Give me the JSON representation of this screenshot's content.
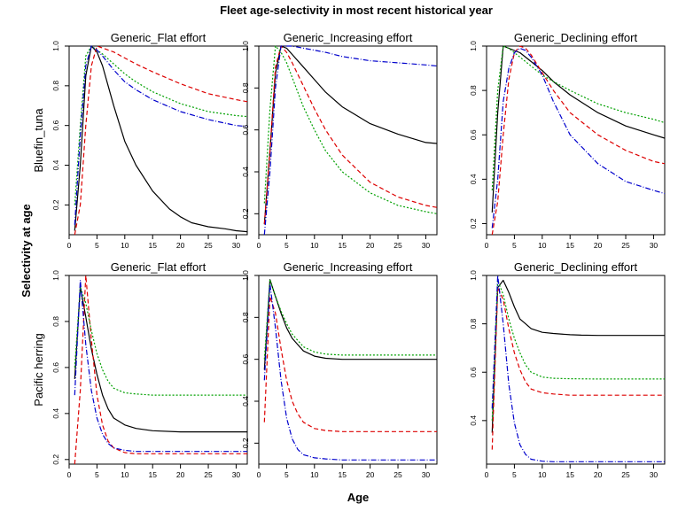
{
  "title": "Fleet age-selectivity in most recent historical year",
  "xlabel": "Age",
  "ylabel": "Selectivity at age",
  "chart_data": [
    {
      "type": "line",
      "row": 0,
      "col": 0,
      "title": "Generic_Flat effort",
      "row_label": "Bluefin_tuna",
      "xlim": [
        0,
        32
      ],
      "ylim": [
        0.05,
        1.0
      ],
      "xticks": [
        0,
        5,
        10,
        15,
        20,
        25,
        30
      ],
      "yticks": [
        0.2,
        0.4,
        0.6,
        0.8,
        1.0
      ],
      "series": [
        {
          "color": "#000000",
          "dash": "",
          "x": [
            1,
            2,
            3,
            4,
            5,
            6,
            7,
            8,
            10,
            12,
            15,
            18,
            20,
            22,
            25,
            28,
            30,
            32
          ],
          "y": [
            0.07,
            0.4,
            0.85,
            1.0,
            0.97,
            0.9,
            0.8,
            0.7,
            0.52,
            0.4,
            0.27,
            0.18,
            0.14,
            0.11,
            0.09,
            0.08,
            0.07,
            0.065
          ]
        },
        {
          "color": "#dd0000",
          "dash": "5,3",
          "x": [
            1,
            2,
            3,
            4,
            5,
            6,
            8,
            10,
            12,
            15,
            20,
            25,
            30,
            32
          ],
          "y": [
            0.05,
            0.2,
            0.6,
            0.9,
            1.0,
            0.99,
            0.97,
            0.94,
            0.91,
            0.87,
            0.81,
            0.76,
            0.73,
            0.72
          ]
        },
        {
          "color": "#00a000",
          "dash": "2,2",
          "x": [
            1,
            2,
            3,
            4,
            5,
            6,
            8,
            10,
            12,
            15,
            20,
            25,
            30,
            32
          ],
          "y": [
            0.2,
            0.6,
            0.95,
            1.0,
            0.98,
            0.96,
            0.91,
            0.86,
            0.82,
            0.77,
            0.71,
            0.67,
            0.65,
            0.645
          ]
        },
        {
          "color": "#0000cc",
          "dash": "6,2,1,2",
          "x": [
            1,
            2,
            3,
            4,
            5,
            6,
            8,
            10,
            12,
            15,
            20,
            25,
            30,
            32
          ],
          "y": [
            0.1,
            0.55,
            0.9,
            1.0,
            0.98,
            0.95,
            0.88,
            0.82,
            0.78,
            0.73,
            0.67,
            0.63,
            0.6,
            0.595
          ]
        }
      ]
    },
    {
      "type": "line",
      "row": 0,
      "col": 1,
      "title": "Generic_Increasing effort",
      "row_label": "",
      "xlim": [
        0,
        32
      ],
      "ylim": [
        0.1,
        1.0
      ],
      "xticks": [
        0,
        5,
        10,
        15,
        20,
        25,
        30
      ],
      "yticks": [
        0.2,
        0.4,
        0.6,
        0.8,
        1.0
      ],
      "series": [
        {
          "color": "#000000",
          "dash": "",
          "x": [
            1,
            2,
            3,
            4,
            5,
            6,
            8,
            10,
            12,
            15,
            20,
            25,
            30,
            32
          ],
          "y": [
            0.15,
            0.5,
            0.87,
            1.0,
            0.99,
            0.96,
            0.9,
            0.84,
            0.78,
            0.71,
            0.63,
            0.58,
            0.54,
            0.535
          ]
        },
        {
          "color": "#dd0000",
          "dash": "5,3",
          "x": [
            1,
            2,
            3,
            4,
            5,
            6,
            8,
            10,
            12,
            15,
            20,
            25,
            30,
            32
          ],
          "y": [
            0.15,
            0.5,
            0.9,
            1.0,
            0.97,
            0.92,
            0.81,
            0.7,
            0.6,
            0.48,
            0.35,
            0.28,
            0.24,
            0.23
          ]
        },
        {
          "color": "#00a000",
          "dash": "2,2",
          "x": [
            1,
            2,
            3,
            4,
            5,
            6,
            8,
            10,
            12,
            15,
            20,
            25,
            30,
            32
          ],
          "y": [
            0.25,
            0.7,
            1.0,
            0.97,
            0.92,
            0.85,
            0.71,
            0.6,
            0.5,
            0.4,
            0.3,
            0.24,
            0.21,
            0.2
          ]
        },
        {
          "color": "#0000cc",
          "dash": "6,2,1,2",
          "x": [
            1,
            2,
            3,
            4,
            5,
            6,
            8,
            10,
            12,
            15,
            20,
            25,
            30,
            32
          ],
          "y": [
            0.1,
            0.4,
            0.8,
            1.0,
            1.0,
            1.0,
            0.99,
            0.98,
            0.97,
            0.95,
            0.93,
            0.92,
            0.91,
            0.905
          ]
        }
      ]
    },
    {
      "type": "line",
      "row": 0,
      "col": 2,
      "title": "Generic_Declining effort",
      "row_label": "",
      "xlim": [
        0,
        32
      ],
      "ylim": [
        0.15,
        1.0
      ],
      "xticks": [
        0,
        5,
        10,
        15,
        20,
        25,
        30
      ],
      "yticks": [
        0.2,
        0.4,
        0.6,
        0.8,
        1.0
      ],
      "series": [
        {
          "color": "#000000",
          "dash": "",
          "x": [
            1,
            2,
            3,
            4,
            5,
            6,
            8,
            10,
            12,
            15,
            20,
            25,
            30,
            32
          ],
          "y": [
            0.25,
            0.7,
            1.0,
            0.99,
            0.98,
            0.97,
            0.93,
            0.89,
            0.84,
            0.78,
            0.7,
            0.64,
            0.6,
            0.585
          ]
        },
        {
          "color": "#dd0000",
          "dash": "5,3",
          "x": [
            1,
            2,
            3,
            4,
            5,
            6,
            7,
            8,
            10,
            12,
            15,
            20,
            25,
            30,
            32
          ],
          "y": [
            0.15,
            0.3,
            0.6,
            0.85,
            0.97,
            1.0,
            0.99,
            0.96,
            0.88,
            0.8,
            0.7,
            0.6,
            0.53,
            0.48,
            0.47
          ]
        },
        {
          "color": "#00a000",
          "dash": "2,2",
          "x": [
            1,
            2,
            3,
            4,
            5,
            6,
            8,
            10,
            12,
            15,
            20,
            25,
            30,
            32
          ],
          "y": [
            0.35,
            0.8,
            1.0,
            0.99,
            0.97,
            0.95,
            0.91,
            0.87,
            0.84,
            0.8,
            0.74,
            0.7,
            0.67,
            0.655
          ]
        },
        {
          "color": "#0000cc",
          "dash": "6,2,1,2",
          "x": [
            1,
            2,
            3,
            4,
            5,
            6,
            7,
            8,
            10,
            12,
            15,
            20,
            25,
            30,
            32
          ],
          "y": [
            0.18,
            0.4,
            0.75,
            0.9,
            0.97,
            0.99,
            0.98,
            0.95,
            0.87,
            0.75,
            0.6,
            0.47,
            0.39,
            0.35,
            0.335
          ]
        }
      ]
    },
    {
      "type": "line",
      "row": 1,
      "col": 0,
      "title": "Generic_Flat effort",
      "row_label": "Pacific herring",
      "xlim": [
        0,
        32
      ],
      "ylim": [
        0.18,
        1.0
      ],
      "xticks": [
        0,
        5,
        10,
        15,
        20,
        25,
        30
      ],
      "yticks": [
        0.2,
        0.4,
        0.6,
        0.8,
        1.0
      ],
      "series": [
        {
          "color": "#000000",
          "dash": "",
          "x": [
            1,
            2,
            3,
            4,
            5,
            6,
            7,
            8,
            10,
            12,
            15,
            20,
            25,
            30,
            32
          ],
          "y": [
            0.55,
            0.95,
            0.82,
            0.68,
            0.57,
            0.48,
            0.42,
            0.38,
            0.35,
            0.335,
            0.325,
            0.32,
            0.32,
            0.32,
            0.32
          ]
        },
        {
          "color": "#dd0000",
          "dash": "5,3",
          "x": [
            1,
            2,
            3,
            4,
            5,
            6,
            7,
            8,
            10,
            12,
            15,
            20,
            25,
            30,
            32
          ],
          "y": [
            0.18,
            0.5,
            1.0,
            0.72,
            0.48,
            0.35,
            0.28,
            0.25,
            0.23,
            0.225,
            0.225,
            0.225,
            0.225,
            0.225,
            0.225
          ]
        },
        {
          "color": "#00a000",
          "dash": "2,2",
          "x": [
            1,
            2,
            3,
            4,
            5,
            6,
            7,
            8,
            10,
            12,
            15,
            20,
            25,
            30,
            32
          ],
          "y": [
            0.6,
            0.95,
            0.88,
            0.76,
            0.66,
            0.59,
            0.54,
            0.51,
            0.49,
            0.485,
            0.48,
            0.48,
            0.48,
            0.48,
            0.48
          ]
        },
        {
          "color": "#0000cc",
          "dash": "6,2,1,2",
          "x": [
            1,
            2,
            3,
            4,
            5,
            6,
            7,
            8,
            10,
            12,
            15,
            20,
            25,
            30,
            32
          ],
          "y": [
            0.48,
            0.98,
            0.7,
            0.5,
            0.38,
            0.31,
            0.27,
            0.25,
            0.24,
            0.235,
            0.235,
            0.235,
            0.235,
            0.235,
            0.235
          ]
        }
      ]
    },
    {
      "type": "line",
      "row": 1,
      "col": 1,
      "title": "Generic_Increasing effort",
      "row_label": "",
      "xlim": [
        0,
        32
      ],
      "ylim": [
        0.1,
        1.0
      ],
      "xticks": [
        0,
        5,
        10,
        15,
        20,
        25,
        30
      ],
      "yticks": [
        0.2,
        0.4,
        0.6,
        0.8,
        1.0
      ],
      "series": [
        {
          "color": "#000000",
          "dash": "",
          "x": [
            1,
            2,
            3,
            4,
            5,
            6,
            7,
            8,
            10,
            12,
            15,
            20,
            25,
            30,
            32
          ],
          "y": [
            0.55,
            0.98,
            0.9,
            0.82,
            0.75,
            0.7,
            0.67,
            0.64,
            0.615,
            0.605,
            0.6,
            0.6,
            0.6,
            0.6,
            0.6
          ]
        },
        {
          "color": "#dd0000",
          "dash": "5,3",
          "x": [
            1,
            2,
            3,
            4,
            5,
            6,
            7,
            8,
            10,
            12,
            15,
            20,
            25,
            30,
            32
          ],
          "y": [
            0.3,
            0.9,
            0.82,
            0.65,
            0.5,
            0.4,
            0.34,
            0.3,
            0.27,
            0.26,
            0.255,
            0.255,
            0.255,
            0.255,
            0.255
          ]
        },
        {
          "color": "#00a000",
          "dash": "2,2",
          "x": [
            1,
            2,
            3,
            4,
            5,
            6,
            7,
            8,
            10,
            12,
            15,
            20,
            25,
            30,
            32
          ],
          "y": [
            0.6,
            0.98,
            0.9,
            0.83,
            0.77,
            0.72,
            0.69,
            0.66,
            0.635,
            0.625,
            0.62,
            0.62,
            0.62,
            0.62,
            0.62
          ]
        },
        {
          "color": "#0000cc",
          "dash": "6,2,1,2",
          "x": [
            1,
            2,
            3,
            4,
            5,
            6,
            7,
            8,
            10,
            12,
            15,
            20,
            25,
            30,
            32
          ],
          "y": [
            0.5,
            0.96,
            0.75,
            0.5,
            0.32,
            0.22,
            0.17,
            0.145,
            0.13,
            0.125,
            0.12,
            0.12,
            0.12,
            0.12,
            0.12
          ]
        }
      ]
    },
    {
      "type": "line",
      "row": 1,
      "col": 2,
      "title": "Generic_Declining effort",
      "row_label": "",
      "xlim": [
        0,
        32
      ],
      "ylim": [
        0.22,
        1.0
      ],
      "xticks": [
        0,
        5,
        10,
        15,
        20,
        25,
        30
      ],
      "yticks": [
        0.4,
        0.6,
        0.8,
        1.0
      ],
      "series": [
        {
          "color": "#000000",
          "dash": "",
          "x": [
            1,
            2,
            3,
            4,
            5,
            6,
            7,
            8,
            10,
            12,
            15,
            17,
            20,
            25,
            30,
            32
          ],
          "y": [
            0.35,
            0.95,
            0.98,
            0.93,
            0.87,
            0.82,
            0.8,
            0.78,
            0.765,
            0.76,
            0.755,
            0.753,
            0.752,
            0.752,
            0.752,
            0.752
          ]
        },
        {
          "color": "#dd0000",
          "dash": "5,3",
          "x": [
            1,
            2,
            3,
            4,
            5,
            6,
            7,
            8,
            10,
            12,
            15,
            20,
            25,
            30,
            32
          ],
          "y": [
            0.28,
            0.95,
            0.9,
            0.78,
            0.68,
            0.61,
            0.56,
            0.53,
            0.515,
            0.51,
            0.505,
            0.505,
            0.505,
            0.505,
            0.505
          ]
        },
        {
          "color": "#00a000",
          "dash": "2,2",
          "x": [
            1,
            2,
            3,
            4,
            5,
            6,
            7,
            8,
            10,
            12,
            15,
            20,
            25,
            30,
            32
          ],
          "y": [
            0.4,
            0.98,
            0.92,
            0.82,
            0.74,
            0.68,
            0.63,
            0.6,
            0.58,
            0.575,
            0.573,
            0.572,
            0.572,
            0.572,
            0.572
          ]
        },
        {
          "color": "#0000cc",
          "dash": "6,2,1,2",
          "x": [
            1,
            2,
            3,
            4,
            5,
            6,
            7,
            8,
            10,
            12,
            15,
            20,
            25,
            30,
            32
          ],
          "y": [
            0.45,
            1.0,
            0.8,
            0.55,
            0.39,
            0.3,
            0.26,
            0.24,
            0.232,
            0.23,
            0.23,
            0.23,
            0.23,
            0.23,
            0.23
          ]
        }
      ]
    }
  ]
}
